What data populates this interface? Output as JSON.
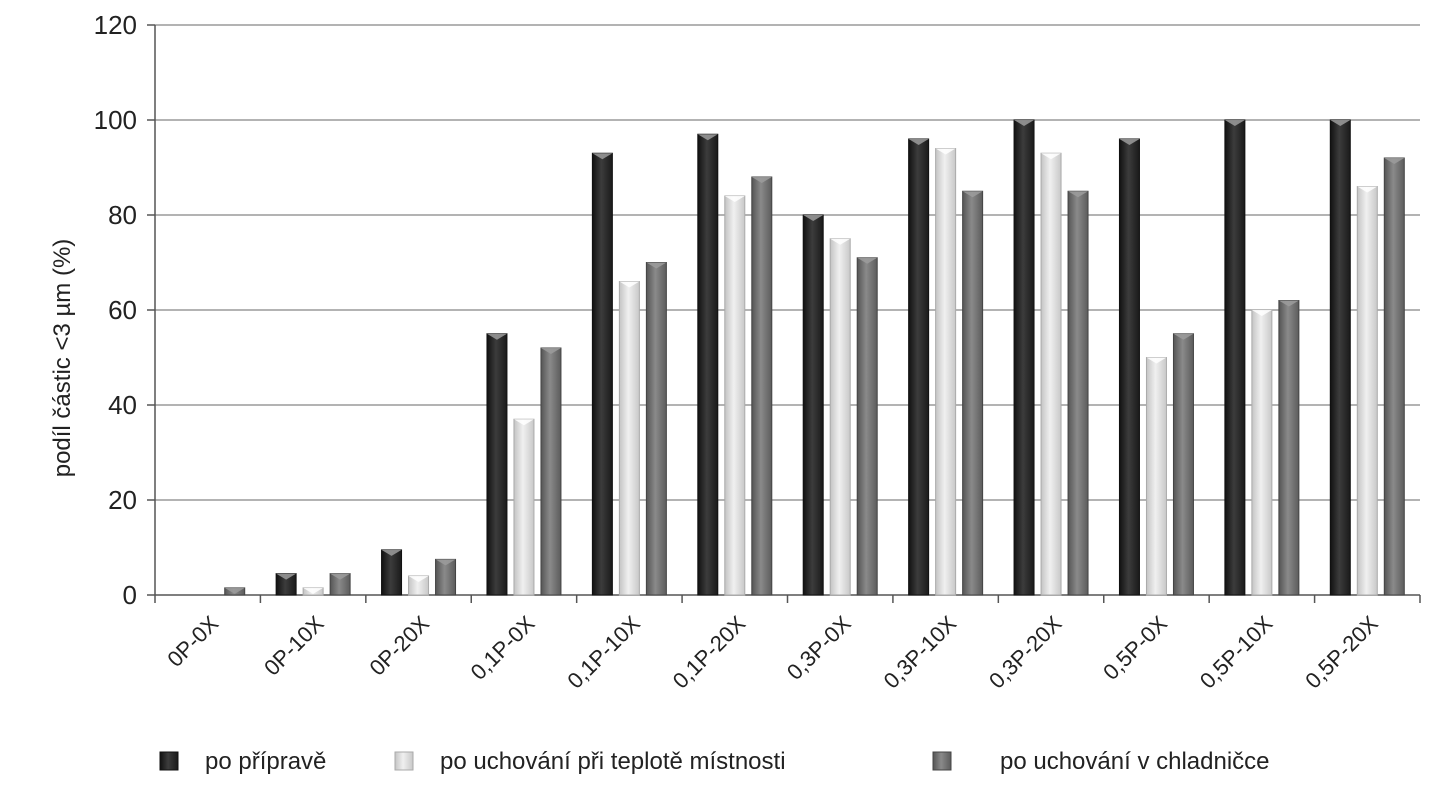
{
  "chart_data": {
    "type": "bar",
    "title": "",
    "xlabel": "",
    "ylabel": "podíl částic <3 µm (%)",
    "ylim": [
      0,
      120
    ],
    "yticks": [
      0,
      20,
      40,
      60,
      80,
      100,
      120
    ],
    "grid": true,
    "legend_position": "bottom",
    "categories": [
      "0P-0X",
      "0P-10X",
      "0P-20X",
      "0,1P-0X",
      "0,1P-10X",
      "0,1P-20X",
      "0,3P-0X",
      "0,3P-10X",
      "0,3P-20X",
      "0,5P-0X",
      "0,5P-10X",
      "0,5P-20X"
    ],
    "series": [
      {
        "name": "po přípravě",
        "color": "#2b2b2b",
        "values": [
          0,
          4.5,
          9.5,
          55,
          93,
          97,
          80,
          96,
          100,
          96,
          100,
          100
        ]
      },
      {
        "name": "po uchování při teplotě místnosti",
        "color": "#d9d9d9",
        "values": [
          0,
          1.5,
          4,
          37,
          66,
          84,
          75,
          94,
          93,
          50,
          60,
          86
        ]
      },
      {
        "name": "po uchování v chladničce",
        "color": "#6e6e6e",
        "values": [
          1.5,
          4.5,
          7.5,
          52,
          70,
          88,
          71,
          85,
          85,
          55,
          62,
          92
        ]
      }
    ]
  }
}
